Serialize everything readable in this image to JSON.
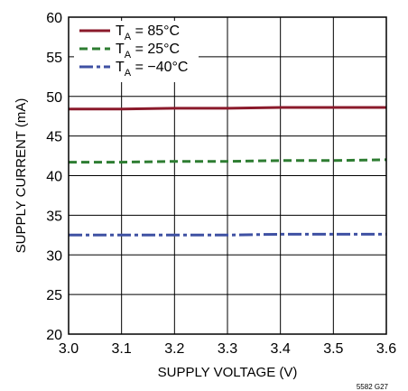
{
  "chart_data": {
    "type": "line",
    "title": "",
    "xlabel": "SUPPLY VOLTAGE (V)",
    "ylabel": "SUPPLY CURRENT (mA)",
    "xlim": [
      3.0,
      3.6
    ],
    "ylim": [
      20,
      60
    ],
    "x_ticks": [
      "3.0",
      "3.1",
      "3.2",
      "3.3",
      "3.4",
      "3.5",
      "3.6"
    ],
    "y_ticks": [
      "20",
      "25",
      "30",
      "35",
      "40",
      "45",
      "50",
      "55",
      "60"
    ],
    "grid": true,
    "legend_position": "top-left",
    "x": [
      3.0,
      3.1,
      3.2,
      3.3,
      3.4,
      3.5,
      3.6
    ],
    "series": [
      {
        "name": "TA = 85°C",
        "legend_main": "T",
        "legend_sub": "A",
        "legend_rest": " = 85°C",
        "values": [
          48.4,
          48.4,
          48.5,
          48.5,
          48.6,
          48.6,
          48.6
        ],
        "color": "#8b1a2b",
        "dash": "solid"
      },
      {
        "name": "TA = 25°C",
        "legend_main": "T",
        "legend_sub": "A",
        "legend_rest": " = 25°C",
        "values": [
          41.7,
          41.7,
          41.8,
          41.8,
          41.9,
          41.9,
          42.0
        ],
        "color": "#2e7d32",
        "dash": "dashed"
      },
      {
        "name": "TA = −40°C",
        "legend_main": "T",
        "legend_sub": "A",
        "legend_rest": " = −40°C",
        "values": [
          32.5,
          32.5,
          32.5,
          32.5,
          32.6,
          32.6,
          32.6
        ],
        "color": "#3f51a3",
        "dash": "dashdot"
      }
    ],
    "figure_id": "5582 G27"
  }
}
